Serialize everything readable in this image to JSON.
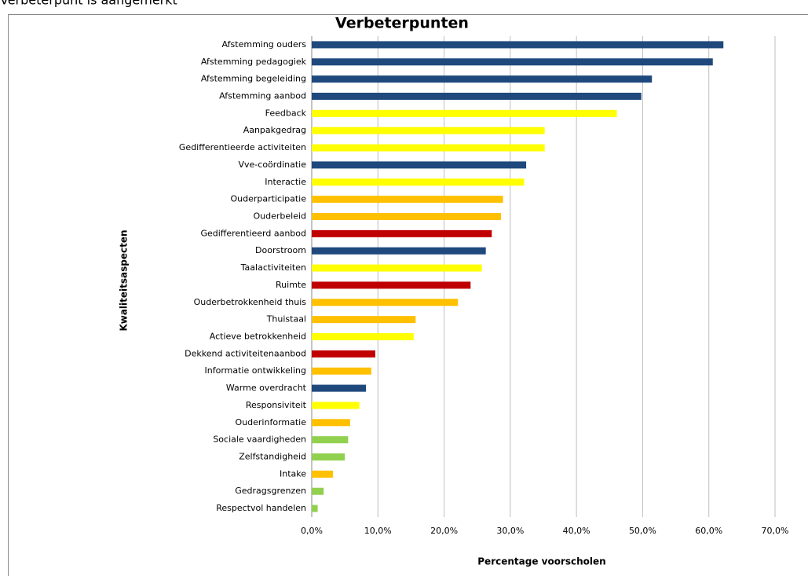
{
  "page_text": "Verbeterpunt is aangemerkt",
  "chart_data": {
    "type": "barh",
    "title": "Verbeterpunten",
    "xlabel": "Percentage voorscholen",
    "ylabel": "Kwaliteitsaspecten",
    "categories": [
      "Afstemming ouders",
      "Afstemming pedagogiek",
      "Afstemming begeleiding",
      "Afstemming aanbod",
      "Feedback",
      "Aanpakgedrag",
      "Gedifferentieerde activiteiten",
      "Vve-coördinatie",
      "Interactie",
      "Ouderparticipatie",
      "Ouderbeleid",
      "Gedifferentieerd aanbod",
      "Doorstroom",
      "Taalactiviteiten",
      "Ruimte",
      "Ouderbetrokkenheid thuis",
      "Thuistaal",
      "Actieve betrokkenheid",
      "Dekkend activiteitenaanbod",
      "Informatie ontwikkeling",
      "Warme overdracht",
      "Responsiviteit",
      "Ouderinformatie",
      "Sociale vaardigheden",
      "Zelfstandigheid",
      "Intake",
      "Gedragsgrenzen",
      "Respectvol handelen"
    ],
    "values": [
      62.2,
      60.6,
      51.4,
      49.8,
      46.1,
      35.2,
      35.2,
      32.4,
      32.1,
      28.9,
      28.6,
      27.2,
      26.3,
      25.7,
      24.0,
      22.1,
      15.7,
      15.4,
      9.6,
      9.0,
      8.2,
      7.2,
      5.8,
      5.5,
      5.0,
      3.2,
      1.8,
      0.9
    ],
    "colors": [
      "#1f497d",
      "#1f497d",
      "#1f497d",
      "#1f497d",
      "#ffff00",
      "#ffff00",
      "#ffff00",
      "#1f497d",
      "#ffff00",
      "#ffc000",
      "#ffc000",
      "#c00000",
      "#1f497d",
      "#ffff00",
      "#c00000",
      "#ffc000",
      "#ffc000",
      "#ffff00",
      "#c00000",
      "#ffc000",
      "#1f497d",
      "#ffff00",
      "#ffc000",
      "#92d050",
      "#92d050",
      "#ffc000",
      "#92d050",
      "#92d050"
    ],
    "xlim": [
      0,
      70
    ],
    "xticks": [
      {
        "value": 0,
        "label": "0,0%"
      },
      {
        "value": 10,
        "label": "10,0%"
      },
      {
        "value": 20,
        "label": "20,0%"
      },
      {
        "value": 30,
        "label": "30,0%"
      },
      {
        "value": 40,
        "label": "40,0%"
      },
      {
        "value": 50,
        "label": "50,0%"
      },
      {
        "value": 60,
        "label": "60,0%"
      },
      {
        "value": 70,
        "label": "70,0%"
      }
    ],
    "grid": true
  }
}
